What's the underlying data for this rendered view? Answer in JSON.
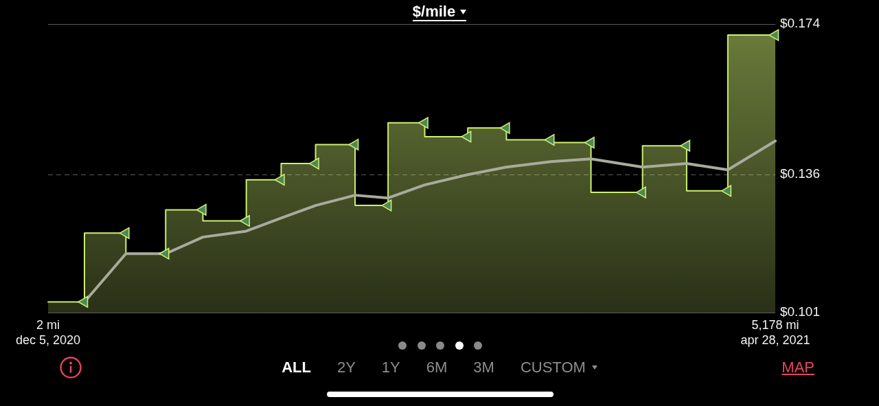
{
  "chart_data": {
    "type": "area",
    "title": "$/mile",
    "xlim": [
      2,
      5178
    ],
    "xticks": [
      {
        "value": 2,
        "label": "2 mi"
      },
      {
        "value": 5178,
        "label": "5,178 mi"
      }
    ],
    "x2lim": [
      "2020-12-05",
      "2021-04-28"
    ],
    "x2ticks": [
      {
        "value": "2020-12-05",
        "label": "dec 5, 2020"
      },
      {
        "value": "2021-04-28",
        "label": "apr 28, 2021"
      }
    ],
    "ylim": [
      0.101,
      0.174
    ],
    "yticks": [
      {
        "value": 0.101,
        "label": "$0.101"
      },
      {
        "value": 0.136,
        "label": "$0.136"
      },
      {
        "value": 0.174,
        "label": "$0.174"
      }
    ],
    "grid": "y",
    "series": [
      {
        "color": "#cdef72",
        "x": [
          2,
          261,
          261,
          556,
          556,
          839,
          839,
          1104,
          1104,
          1413,
          1413,
          1661,
          1661,
          1906,
          1906,
          2187,
          2187,
          2422,
          2422,
          2683,
          2683,
          2989,
          2989,
          3264,
          3264,
          3581,
          3581,
          3866,
          3866,
          4233,
          4233,
          4547,
          4547,
          4840,
          4840,
          5178
        ],
        "values": [
          0.1037,
          0.1037,
          0.1211,
          0.1211,
          0.1159,
          0.1159,
          0.127,
          0.127,
          0.1242,
          0.1242,
          0.1346,
          0.1346,
          0.1387,
          0.1387,
          0.1435,
          0.1435,
          0.1281,
          0.1281,
          0.149,
          0.149,
          0.1455,
          0.1455,
          0.1477,
          0.1477,
          0.1447,
          0.1447,
          0.144,
          0.144,
          0.1314,
          0.1314,
          0.1432,
          0.1432,
          0.1318,
          0.1318,
          0.1712,
          0.1712
        ]
      },
      {
        "type": "line",
        "color": "#a8ab9c",
        "x": [
          261,
          556,
          839,
          1104,
          1413,
          1661,
          1906,
          2187,
          2422,
          2683,
          2989,
          3264,
          3581,
          3866,
          4233,
          4547,
          4840,
          5178
        ],
        "values": [
          0.1037,
          0.1159,
          0.1159,
          0.1201,
          0.1216,
          0.1249,
          0.1281,
          0.1307,
          0.13,
          0.1333,
          0.1359,
          0.1378,
          0.1392,
          0.1399,
          0.1378,
          0.1387,
          0.1371,
          0.1444
        ]
      },
      {
        "type": "scatter",
        "color": "#4d8a50",
        "marker": "triangle",
        "x": [
          261,
          556,
          839,
          1104,
          1413,
          1661,
          1906,
          2187,
          2422,
          2683,
          2989,
          3264,
          3581,
          3866,
          4233,
          4547,
          4840,
          5178
        ],
        "values": [
          0.1037,
          0.1211,
          0.1159,
          0.127,
          0.1242,
          0.1346,
          0.1387,
          0.1435,
          0.1281,
          0.149,
          0.1455,
          0.1477,
          0.1447,
          0.144,
          0.1314,
          0.1432,
          0.1318,
          0.1712
        ]
      }
    ],
    "annotations": [
      "ALL",
      "2Y",
      "1Y",
      "6M",
      "3M",
      "CUSTOM",
      "MAP"
    ]
  }
}
